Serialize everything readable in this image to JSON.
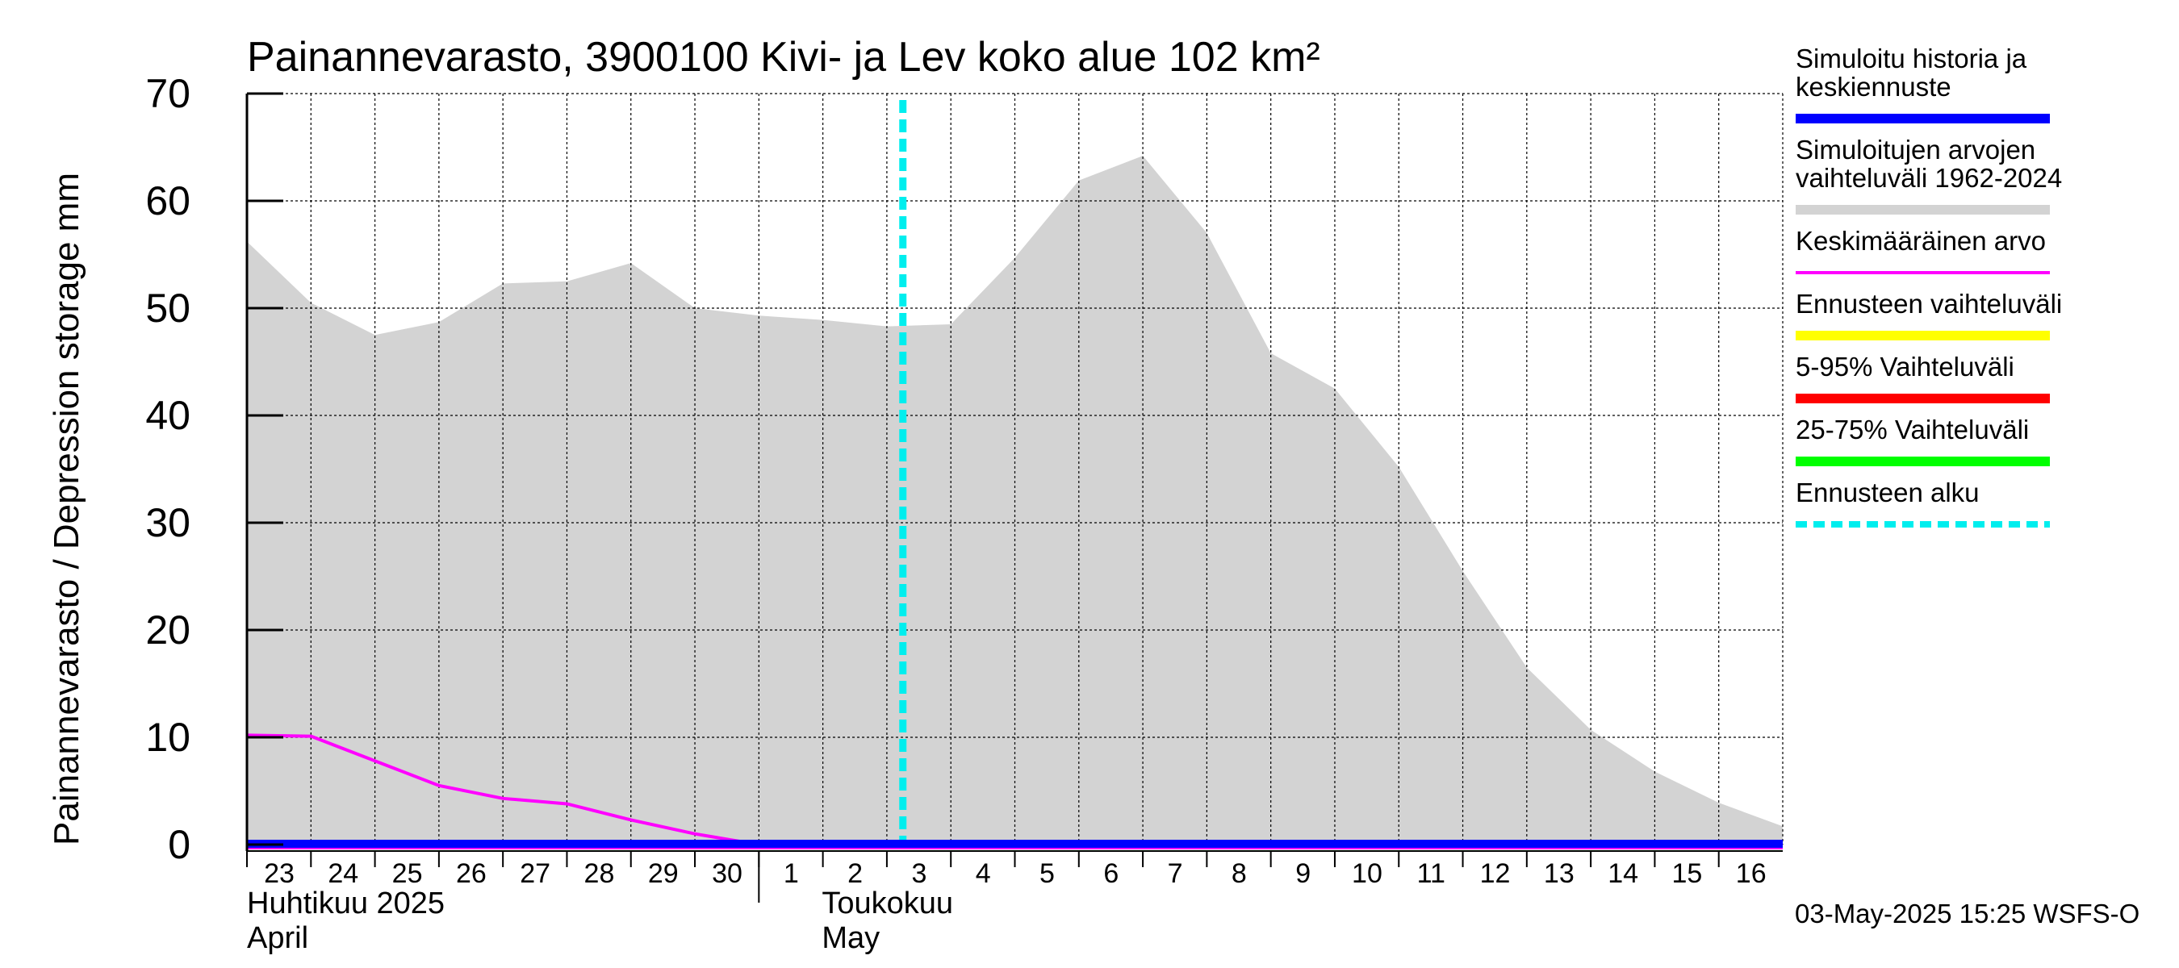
{
  "chart_data": {
    "type": "area",
    "title": "Painannevarasto, 3900100 Kivi- ja Lev koko alue 102 km²",
    "ylabel": "Painannevarasto / Depression storage    mm",
    "ylim": [
      0,
      70
    ],
    "yticks": [
      0,
      10,
      20,
      30,
      40,
      50,
      60,
      70
    ],
    "xlim": [
      "2025-04-23",
      "2025-05-17"
    ],
    "x_tick_labels": [
      {
        "date": "2025-04-23",
        "label": "23"
      },
      {
        "date": "2025-04-24",
        "label": "24"
      },
      {
        "date": "2025-04-25",
        "label": "25"
      },
      {
        "date": "2025-04-26",
        "label": "26"
      },
      {
        "date": "2025-04-27",
        "label": "27"
      },
      {
        "date": "2025-04-28",
        "label": "28"
      },
      {
        "date": "2025-04-29",
        "label": "29"
      },
      {
        "date": "2025-04-30",
        "label": "30"
      },
      {
        "date": "2025-05-01",
        "label": "1"
      },
      {
        "date": "2025-05-02",
        "label": "2"
      },
      {
        "date": "2025-05-03",
        "label": "3"
      },
      {
        "date": "2025-05-04",
        "label": "4"
      },
      {
        "date": "2025-05-05",
        "label": "5"
      },
      {
        "date": "2025-05-06",
        "label": "6"
      },
      {
        "date": "2025-05-07",
        "label": "7"
      },
      {
        "date": "2025-05-08",
        "label": "8"
      },
      {
        "date": "2025-05-09",
        "label": "9"
      },
      {
        "date": "2025-05-10",
        "label": "10"
      },
      {
        "date": "2025-05-11",
        "label": "11"
      },
      {
        "date": "2025-05-12",
        "label": "12"
      },
      {
        "date": "2025-05-13",
        "label": "13"
      },
      {
        "date": "2025-05-14",
        "label": "14"
      },
      {
        "date": "2025-05-15",
        "label": "15"
      },
      {
        "date": "2025-05-16",
        "label": "16"
      }
    ],
    "month_labels": [
      {
        "date": "2025-04-23",
        "line1": "Huhtikuu  2025",
        "line2": "April"
      },
      {
        "date": "2025-05-01",
        "line1": "Toukokuu",
        "line2": "May"
      }
    ],
    "grid": true,
    "legend_position": "right",
    "series": [
      {
        "name": "Simuloitujen arvojen vaihteluväli 1962-2024",
        "kind": "range",
        "color": "#d3d3d3",
        "x": [
          "2025-04-23",
          "2025-04-24",
          "2025-04-25",
          "2025-04-26",
          "2025-04-27",
          "2025-04-28",
          "2025-04-29",
          "2025-04-30",
          "2025-05-01",
          "2025-05-02",
          "2025-05-03",
          "2025-05-04",
          "2025-05-05",
          "2025-05-06",
          "2025-05-07",
          "2025-05-08",
          "2025-05-09",
          "2025-05-10",
          "2025-05-11",
          "2025-05-12",
          "2025-05-13",
          "2025-05-14",
          "2025-05-15",
          "2025-05-16",
          "2025-05-17"
        ],
        "upper": [
          56.2,
          50.5,
          47.5,
          48.7,
          52.3,
          52.5,
          54.2,
          50.0,
          49.3,
          48.9,
          48.3,
          48.5,
          54.7,
          61.9,
          64.2,
          57.0,
          45.8,
          42.5,
          35.2,
          25.5,
          16.5,
          10.7,
          6.8,
          3.9,
          1.7
        ],
        "lower": [
          0,
          0,
          0,
          0,
          0,
          0,
          0,
          0,
          0,
          0,
          0,
          0,
          0,
          0,
          0,
          0,
          0,
          0,
          0,
          0,
          0,
          0,
          0,
          0,
          0
        ]
      },
      {
        "name": "Keskimääräinen arvo",
        "kind": "line",
        "color": "#ff00ff",
        "x": [
          "2025-04-23",
          "2025-04-24",
          "2025-04-25",
          "2025-04-26",
          "2025-04-27",
          "2025-04-28",
          "2025-04-29",
          "2025-04-30",
          "2025-05-01",
          "2025-05-02",
          "2025-05-03",
          "2025-05-04",
          "2025-05-05",
          "2025-05-06",
          "2025-05-07",
          "2025-05-08",
          "2025-05-09",
          "2025-05-10",
          "2025-05-11",
          "2025-05-12",
          "2025-05-13",
          "2025-05-14",
          "2025-05-15",
          "2025-05-16",
          "2025-05-17"
        ],
        "y": [
          10.2,
          10.1,
          7.8,
          5.5,
          4.3,
          3.8,
          2.3,
          1.0,
          0,
          0,
          0,
          0,
          0,
          0,
          0,
          0,
          0,
          0,
          0,
          0,
          0,
          0,
          0,
          0,
          0
        ]
      },
      {
        "name": "Simuloitu historia ja keskiennuste",
        "kind": "line",
        "color": "#0000ff",
        "x": [
          "2025-04-23",
          "2025-05-17"
        ],
        "y": [
          0,
          0
        ]
      },
      {
        "name": "Ennusteen alku",
        "kind": "vline",
        "color": "#00eeee",
        "x": "2025-05-03T06:00"
      }
    ],
    "legend": [
      {
        "lines": [
          "Simuloitu historia ja",
          "keskiennuste"
        ],
        "color": "#0000ff",
        "style": "solid-thick"
      },
      {
        "lines": [
          "Simuloitujen arvojen",
          "vaihteluväli 1962-2024"
        ],
        "color": "#d3d3d3",
        "style": "solid"
      },
      {
        "lines": [
          "Keskimääräinen arvo"
        ],
        "color": "#ff00ff",
        "style": "solid-thin"
      },
      {
        "lines": [
          "Ennusteen vaihteluväli"
        ],
        "color": "#ffff00",
        "style": "solid"
      },
      {
        "lines": [
          "5-95% Vaihteluväli"
        ],
        "color": "#ff0000",
        "style": "solid"
      },
      {
        "lines": [
          "25-75% Vaihteluväli"
        ],
        "color": "#00ff00",
        "style": "solid"
      },
      {
        "lines": [
          "Ennusteen alku"
        ],
        "color": "#00eeee",
        "style": "dashed"
      }
    ],
    "footer": "03-May-2025 15:25 WSFS-O"
  }
}
